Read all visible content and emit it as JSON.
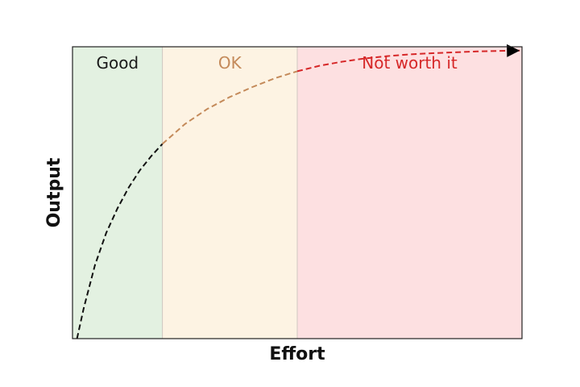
{
  "chart_data": {
    "type": "line",
    "title": "",
    "xlabel": "Effort",
    "ylabel": "Output",
    "xticks": [],
    "yticks": [],
    "grid": false,
    "xlim": [
      0,
      10
    ],
    "ylim": [
      0,
      10
    ],
    "regions": [
      {
        "label": "Good",
        "x_start": 0,
        "x_end": 2.0,
        "fill": "#e3f1e1",
        "label_color": "#1a1a1a",
        "curve_color": "#111111"
      },
      {
        "label": "OK",
        "x_start": 2.0,
        "x_end": 5.0,
        "fill": "#fdf3e3",
        "label_color": "#c48a5a",
        "curve_color": "#c48a5a"
      },
      {
        "label": "Not worth it",
        "x_start": 5.0,
        "x_end": 10.0,
        "fill": "#fde0e1",
        "label_color": "#d62728",
        "curve_color": "#d62728"
      }
    ],
    "curve": {
      "style": "dashed",
      "arrow_end": true,
      "arrow_color": "#000000",
      "x": [
        0.1,
        0.25,
        0.5,
        0.75,
        1.0,
        1.25,
        1.5,
        1.75,
        2.0,
        2.5,
        3.0,
        3.5,
        4.0,
        4.5,
        5.0,
        5.5,
        6.0,
        6.5,
        7.0,
        7.5,
        8.0,
        8.5,
        9.0,
        9.5,
        9.95
      ],
      "y": [
        0.0,
        1.05,
        2.52,
        3.62,
        4.46,
        5.18,
        5.77,
        6.25,
        6.67,
        7.35,
        7.87,
        8.28,
        8.62,
        8.92,
        9.16,
        9.35,
        9.49,
        9.6,
        9.68,
        9.74,
        9.78,
        9.81,
        9.84,
        9.86,
        9.87
      ]
    }
  }
}
